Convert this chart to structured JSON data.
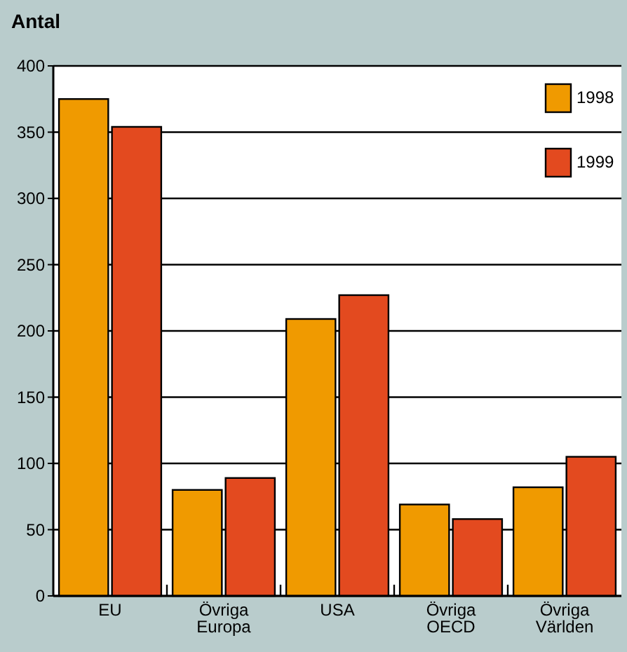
{
  "chart_data": {
    "type": "bar",
    "title": "Antal",
    "categories": [
      "EU",
      "Övriga\nEuropa",
      "USA",
      "Övriga\nOECD",
      "Övriga\nVärlden"
    ],
    "series": [
      {
        "name": "1998",
        "color": "#f09a00",
        "values": [
          375,
          80,
          209,
          69,
          82
        ]
      },
      {
        "name": "1999",
        "color": "#e34a1f",
        "values": [
          354,
          89,
          227,
          58,
          105
        ]
      }
    ],
    "ylim": [
      0,
      400
    ],
    "yticks": [
      0,
      50,
      100,
      150,
      200,
      250,
      300,
      350,
      400
    ],
    "grid": "y",
    "legend": "top right"
  }
}
